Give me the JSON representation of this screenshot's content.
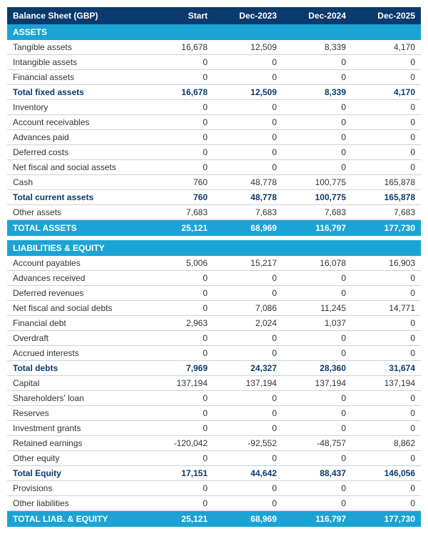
{
  "header": {
    "title": "Balance Sheet (GBP)",
    "cols": [
      "Start",
      "Dec-2023",
      "Dec-2024",
      "Dec-2025"
    ]
  },
  "rows": [
    {
      "t": "section",
      "l": "ASSETS"
    },
    {
      "t": "row",
      "l": "Tangible assets",
      "v": [
        "16,678",
        "12,509",
        "8,339",
        "4,170"
      ]
    },
    {
      "t": "row",
      "l": "Intangible assets",
      "v": [
        "0",
        "0",
        "0",
        "0"
      ]
    },
    {
      "t": "row",
      "l": "Financial assets",
      "v": [
        "0",
        "0",
        "0",
        "0"
      ]
    },
    {
      "t": "bold",
      "l": "Total fixed assets",
      "v": [
        "16,678",
        "12,509",
        "8,339",
        "4,170"
      ]
    },
    {
      "t": "row",
      "l": "Inventory",
      "v": [
        "0",
        "0",
        "0",
        "0"
      ]
    },
    {
      "t": "row",
      "l": "Account receivables",
      "v": [
        "0",
        "0",
        "0",
        "0"
      ]
    },
    {
      "t": "row",
      "l": "Advances paid",
      "v": [
        "0",
        "0",
        "0",
        "0"
      ]
    },
    {
      "t": "row",
      "l": "Deferred costs",
      "v": [
        "0",
        "0",
        "0",
        "0"
      ]
    },
    {
      "t": "row",
      "l": "Net fiscal and social assets",
      "v": [
        "0",
        "0",
        "0",
        "0"
      ]
    },
    {
      "t": "row",
      "l": "Cash",
      "v": [
        "760",
        "48,778",
        "100,775",
        "165,878"
      ]
    },
    {
      "t": "bold",
      "l": "Total current assets",
      "v": [
        "760",
        "48,778",
        "100,775",
        "165,878"
      ]
    },
    {
      "t": "row",
      "l": "Other assets",
      "v": [
        "7,683",
        "7,683",
        "7,683",
        "7,683"
      ]
    },
    {
      "t": "total",
      "l": "TOTAL ASSETS",
      "v": [
        "25,121",
        "68,969",
        "116,797",
        "177,730"
      ]
    },
    {
      "t": "gap"
    },
    {
      "t": "section",
      "l": "LIABILITIES & EQUITY"
    },
    {
      "t": "row",
      "l": "Account payables",
      "v": [
        "5,006",
        "15,217",
        "16,078",
        "16,903"
      ]
    },
    {
      "t": "row",
      "l": "Advances received",
      "v": [
        "0",
        "0",
        "0",
        "0"
      ]
    },
    {
      "t": "row",
      "l": "Deferred revenues",
      "v": [
        "0",
        "0",
        "0",
        "0"
      ]
    },
    {
      "t": "row",
      "l": "Net fiscal and social debts",
      "v": [
        "0",
        "7,086",
        "11,245",
        "14,771"
      ]
    },
    {
      "t": "row",
      "l": "Financial debt",
      "v": [
        "2,963",
        "2,024",
        "1,037",
        "0"
      ]
    },
    {
      "t": "row",
      "l": "Overdraft",
      "v": [
        "0",
        "0",
        "0",
        "0"
      ]
    },
    {
      "t": "row",
      "l": "Accrued interests",
      "v": [
        "0",
        "0",
        "0",
        "0"
      ]
    },
    {
      "t": "bold",
      "l": "Total debts",
      "v": [
        "7,969",
        "24,327",
        "28,360",
        "31,674"
      ]
    },
    {
      "t": "row",
      "l": "Capital",
      "v": [
        "137,194",
        "137,194",
        "137,194",
        "137,194"
      ]
    },
    {
      "t": "row",
      "l": "Shareholders' loan",
      "v": [
        "0",
        "0",
        "0",
        "0"
      ]
    },
    {
      "t": "row",
      "l": "Reserves",
      "v": [
        "0",
        "0",
        "0",
        "0"
      ]
    },
    {
      "t": "row",
      "l": "Investment grants",
      "v": [
        "0",
        "0",
        "0",
        "0"
      ]
    },
    {
      "t": "row",
      "l": "Retained earnings",
      "v": [
        "-120,042",
        "-92,552",
        "-48,757",
        "8,862"
      ]
    },
    {
      "t": "row",
      "l": "Other equity",
      "v": [
        "0",
        "0",
        "0",
        "0"
      ]
    },
    {
      "t": "bold",
      "l": "Total Equity",
      "v": [
        "17,151",
        "44,642",
        "88,437",
        "146,056"
      ]
    },
    {
      "t": "row",
      "l": "Provisions",
      "v": [
        "0",
        "0",
        "0",
        "0"
      ]
    },
    {
      "t": "row",
      "l": "Other liabilities",
      "v": [
        "0",
        "0",
        "0",
        "0"
      ]
    },
    {
      "t": "total",
      "l": "TOTAL LIAB. & EQUITY",
      "v": [
        "25,121",
        "68,969",
        "116,797",
        "177,730"
      ]
    }
  ]
}
